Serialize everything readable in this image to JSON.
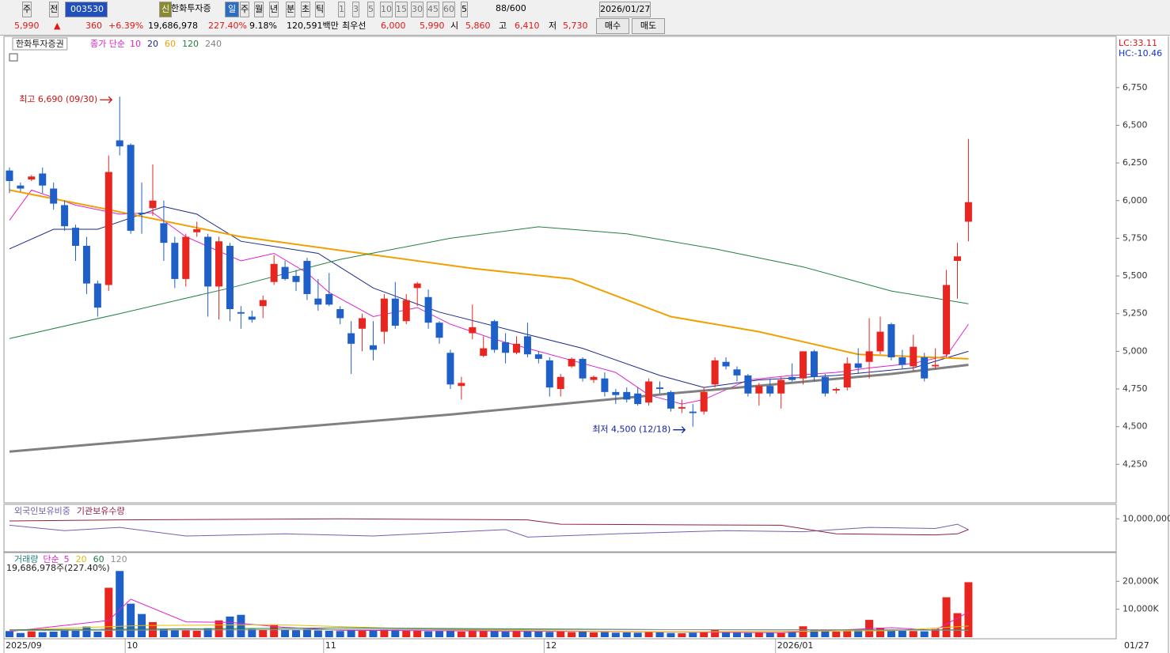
{
  "toolbar": {
    "items": [
      "주",
      "전",
      "003530",
      "신",
      "한화투자증",
      "일",
      "주",
      "월",
      "년",
      "분",
      "초",
      "틱",
      "1",
      "3",
      "5",
      "10",
      "15",
      "30",
      "45",
      "60",
      "5",
      "88/600",
      "2026/01/27"
    ]
  },
  "quote": {
    "items": [
      "5,990",
      "▲",
      "360",
      "+6.39%",
      "19,686,978",
      "227.40%",
      "9.18%",
      "120,591백만",
      "최우선",
      "6,000",
      "5,990",
      "시",
      "5,860",
      "고",
      "6,410",
      "저",
      "5,730"
    ],
    "buttons": [
      "매수",
      "매도"
    ]
  },
  "indicators": [
    "LC:33.11",
    "HC:-10.46"
  ],
  "x_axis": {
    "xticks": [
      {
        "value": 0,
        "label": "2025/09"
      },
      {
        "value": 11,
        "label": "10"
      },
      {
        "value": 29,
        "label": "11"
      },
      {
        "value": 49,
        "label": "12"
      },
      {
        "value": 70,
        "label": "2026/01"
      }
    ],
    "last_date": "01/27"
  },
  "chart_data": [
    {
      "type": "candlestick",
      "title": "한화투자증권",
      "legend_prefix": "종가 단순",
      "up_color": "#e8251f",
      "down_color": "#1f5fc8",
      "xlim": [
        -0.5,
        100.4
      ],
      "ylim": [
        4000,
        7090
      ],
      "yticks": [
        {
          "value": 4250,
          "label": "4,250"
        },
        {
          "value": 4500,
          "label": "4,500"
        },
        {
          "value": 4750,
          "label": "4,750"
        },
        {
          "value": 5000,
          "label": "5,000"
        },
        {
          "value": 5250,
          "label": "5,250"
        },
        {
          "value": 5500,
          "label": "5,500"
        },
        {
          "value": 5750,
          "label": "5,750"
        },
        {
          "value": 6000,
          "label": "6,000"
        },
        {
          "value": 6250,
          "label": "6,250"
        },
        {
          "value": 6500,
          "label": "6,500"
        },
        {
          "value": 6750,
          "label": "6,750"
        }
      ],
      "ohlc": [
        [
          6200,
          6220,
          6050,
          6130
        ],
        [
          6100,
          6120,
          6060,
          6080
        ],
        [
          6140,
          6170,
          6130,
          6160
        ],
        [
          6180,
          6220,
          6050,
          6100
        ],
        [
          6080,
          6120,
          5940,
          5980
        ],
        [
          5970,
          6000,
          5800,
          5830
        ],
        [
          5820,
          5840,
          5600,
          5700
        ],
        [
          5700,
          5760,
          5380,
          5450
        ],
        [
          5450,
          5470,
          5230,
          5290
        ],
        [
          5440,
          6300,
          5400,
          6190
        ],
        [
          6400,
          6690,
          6300,
          6360
        ],
        [
          6370,
          6380,
          5780,
          5800
        ],
        [
          5920,
          6120,
          5780,
          5910
        ],
        [
          5950,
          6240,
          5900,
          6000
        ],
        [
          5850,
          6000,
          5600,
          5720
        ],
        [
          5720,
          5760,
          5420,
          5480
        ],
        [
          5480,
          5780,
          5430,
          5760
        ],
        [
          5790,
          5860,
          5760,
          5810
        ],
        [
          5760,
          5780,
          5230,
          5430
        ],
        [
          5430,
          5760,
          5210,
          5730
        ],
        [
          5700,
          5720,
          5200,
          5280
        ],
        [
          5260,
          5300,
          5150,
          5250
        ],
        [
          5230,
          5270,
          5190,
          5210
        ],
        [
          5300,
          5370,
          5220,
          5340
        ],
        [
          5460,
          5640,
          5440,
          5580
        ],
        [
          5560,
          5600,
          5470,
          5480
        ],
        [
          5500,
          5540,
          5400,
          5460
        ],
        [
          5600,
          5620,
          5340,
          5380
        ],
        [
          5350,
          5480,
          5270,
          5310
        ],
        [
          5380,
          5520,
          5300,
          5310
        ],
        [
          5280,
          5300,
          5180,
          5220
        ],
        [
          5120,
          5200,
          4850,
          5050
        ],
        [
          5150,
          5250,
          5000,
          5220
        ],
        [
          5040,
          5200,
          4940,
          5010
        ],
        [
          5130,
          5380,
          5050,
          5350
        ],
        [
          5350,
          5460,
          5150,
          5170
        ],
        [
          5200,
          5380,
          5180,
          5340
        ],
        [
          5420,
          5460,
          5300,
          5450
        ],
        [
          5360,
          5410,
          5150,
          5190
        ],
        [
          5190,
          5200,
          5050,
          5090
        ],
        [
          4990,
          5010,
          4750,
          4780
        ],
        [
          4770,
          4830,
          4680,
          4790
        ],
        [
          5120,
          5310,
          5080,
          5160
        ],
        [
          4970,
          5100,
          4960,
          5020
        ],
        [
          5200,
          5210,
          4990,
          5010
        ],
        [
          5060,
          5120,
          4920,
          4990
        ],
        [
          4990,
          5100,
          4980,
          5050
        ],
        [
          5100,
          5190,
          4960,
          4980
        ],
        [
          4980,
          5000,
          4920,
          4950
        ],
        [
          4940,
          4960,
          4700,
          4760
        ],
        [
          4750,
          4850,
          4700,
          4830
        ],
        [
          4900,
          4960,
          4890,
          4950
        ],
        [
          4950,
          4960,
          4800,
          4820
        ],
        [
          4810,
          4840,
          4790,
          4830
        ],
        [
          4820,
          4860,
          4700,
          4730
        ],
        [
          4730,
          4750,
          4650,
          4710
        ],
        [
          4730,
          4760,
          4660,
          4680
        ],
        [
          4720,
          4760,
          4640,
          4650
        ],
        [
          4660,
          4820,
          4640,
          4800
        ],
        [
          4760,
          4800,
          4720,
          4750
        ],
        [
          4730,
          4740,
          4600,
          4620
        ],
        [
          4620,
          4680,
          4590,
          4630
        ],
        [
          4600,
          4650,
          4500,
          4590
        ],
        [
          4600,
          4760,
          4580,
          4730
        ],
        [
          4780,
          4960,
          4760,
          4940
        ],
        [
          4930,
          4960,
          4880,
          4900
        ],
        [
          4880,
          4900,
          4800,
          4840
        ],
        [
          4840,
          4850,
          4700,
          4720
        ],
        [
          4720,
          4790,
          4640,
          4770
        ],
        [
          4770,
          4820,
          4700,
          4720
        ],
        [
          4720,
          4830,
          4620,
          4810
        ],
        [
          4830,
          4920,
          4800,
          4810
        ],
        [
          4820,
          5000,
          4780,
          5000
        ],
        [
          5000,
          5010,
          4800,
          4830
        ],
        [
          4830,
          4850,
          4700,
          4720
        ],
        [
          4740,
          4760,
          4720,
          4750
        ],
        [
          4760,
          4960,
          4740,
          4920
        ],
        [
          4920,
          5020,
          4850,
          4890
        ],
        [
          4930,
          5220,
          4820,
          5000
        ],
        [
          5000,
          5230,
          4980,
          5130
        ],
        [
          5180,
          5190,
          4940,
          4960
        ],
        [
          4960,
          5010,
          4880,
          4910
        ],
        [
          4900,
          5110,
          4870,
          5030
        ],
        [
          4960,
          4990,
          4800,
          4820
        ],
        [
          4900,
          5020,
          4880,
          4910
        ],
        [
          4980,
          5540,
          4960,
          5440
        ],
        [
          5600,
          5720,
          5350,
          5630
        ],
        [
          5860,
          6410,
          5730,
          5990
        ]
      ],
      "series": [
        {
          "name": "10",
          "color": "#e020d0",
          "width": 1,
          "x": [
            0,
            2,
            6,
            10,
            13,
            16,
            21,
            24,
            27,
            29,
            33,
            37,
            40,
            44,
            47,
            51,
            55,
            58,
            61,
            63,
            67,
            71,
            75,
            78,
            82,
            85,
            87
          ],
          "values": [
            5870,
            6070,
            5970,
            5910,
            5920,
            5760,
            5600,
            5650,
            5520,
            5390,
            5230,
            5290,
            5180,
            5080,
            5020,
            4940,
            4860,
            4710,
            4650,
            4680,
            4810,
            4840,
            4860,
            4890,
            4920,
            4970,
            5180
          ]
        },
        {
          "name": "20",
          "color": "#1a2a8a",
          "width": 1,
          "x": [
            0,
            4,
            8,
            14,
            17,
            21,
            28,
            33,
            39,
            46,
            52,
            59,
            63,
            68,
            75,
            82,
            87
          ],
          "values": [
            5680,
            5810,
            5810,
            5960,
            5910,
            5730,
            5650,
            5420,
            5260,
            5130,
            5020,
            4840,
            4760,
            4810,
            4840,
            4890,
            5000
          ]
        },
        {
          "name": "60",
          "color": "#f0a000",
          "width": 2,
          "x": [
            0,
            9,
            21,
            32,
            42,
            51,
            60,
            68,
            77,
            87
          ],
          "values": [
            6070,
            5940,
            5760,
            5650,
            5550,
            5480,
            5230,
            5130,
            4980,
            4950
          ]
        },
        {
          "name": "120",
          "color": "#208040",
          "width": 1,
          "x": [
            0,
            10,
            20,
            30,
            40,
            48,
            56,
            64,
            72,
            80,
            87
          ],
          "values": [
            5085,
            5250,
            5420,
            5610,
            5750,
            5826,
            5780,
            5680,
            5560,
            5400,
            5316
          ]
        },
        {
          "name": "240",
          "color": "#808080",
          "width": 3,
          "x": [
            0,
            20,
            40,
            60,
            80,
            87
          ],
          "values": [
            4334,
            4460,
            4580,
            4720,
            4850,
            4910
          ]
        }
      ],
      "annotations": [
        {
          "text": "최고 6,690 (09/30)",
          "color": "#d01010",
          "x": 10,
          "y": 6690,
          "side": "left"
        },
        {
          "text": "최저 4,500 (12/18)",
          "color": "#1020a0",
          "x": 62,
          "y": 4500,
          "side": "left"
        }
      ]
    },
    {
      "type": "line",
      "xlim": [
        -0.5,
        100.4
      ],
      "ylim": [
        8500000,
        10600000
      ],
      "yticks": [
        {
          "value": 10000000,
          "label": "10,000,000"
        }
      ],
      "series": [
        {
          "name": "외국인보유비중",
          "color": "#7060b0",
          "x": [
            0,
            5,
            10,
            16,
            25,
            33,
            45,
            47,
            55,
            65,
            72,
            78,
            84,
            86,
            87
          ],
          "values": [
            9700000,
            9450000,
            9600000,
            9200000,
            9300000,
            9200000,
            9500000,
            9150000,
            9300000,
            9450000,
            9400000,
            9600000,
            9550000,
            9750000,
            9500000
          ]
        },
        {
          "name": "기관보유수량",
          "color": "#902040",
          "x": [
            0,
            10,
            30,
            47,
            50,
            70,
            75,
            84,
            86,
            87
          ],
          "values": [
            9900000,
            9950000,
            10000000,
            9950000,
            9750000,
            9700000,
            9300000,
            9250000,
            9300000,
            9500000
          ]
        }
      ]
    },
    {
      "type": "volume",
      "title": "거래량",
      "legend_prefix": "단순",
      "info": "19,686,978주(227.40%)",
      "xlim": [
        -0.5,
        100.4
      ],
      "ylim": [
        0,
        30000
      ],
      "yticks": [
        {
          "value": 10000,
          "label": "10,000K"
        },
        {
          "value": 20000,
          "label": "20,000K"
        }
      ],
      "values": [
        2200,
        1500,
        2100,
        1800,
        2000,
        2500,
        2300,
        3800,
        2000,
        17700,
        23700,
        12000,
        8300,
        5400,
        2900,
        2500,
        2400,
        2300,
        3200,
        6000,
        7400,
        8000,
        2900,
        2600,
        4300,
        2700,
        2500,
        2900,
        2400,
        2300,
        2200,
        2500,
        2300,
        2400,
        2800,
        2600,
        2400,
        2300,
        2100,
        2200,
        2300,
        2000,
        2700,
        2200,
        2300,
        2000,
        2100,
        2200,
        2000,
        1900,
        2100,
        1800,
        2000,
        1700,
        1800,
        1600,
        1700,
        1600,
        1900,
        1700,
        1500,
        1400,
        1600,
        1800,
        2700,
        1800,
        1600,
        1500,
        1700,
        1600,
        1500,
        1900,
        3900,
        2400,
        2200,
        2000,
        2300,
        2600,
        6200,
        3400,
        2700,
        2300,
        2200,
        2100,
        2900,
        14300,
        8600,
        19686.978
      ],
      "series": [
        {
          "name": "5",
          "color": "#e020d0",
          "x": [
            0,
            9,
            11,
            16,
            20,
            25,
            30,
            50,
            70,
            80,
            84,
            87
          ],
          "values": [
            2000,
            6000,
            13600,
            5500,
            5300,
            3500,
            2500,
            2100,
            1600,
            3400,
            2500,
            9000
          ]
        },
        {
          "name": "20",
          "color": "#e0c000",
          "x": [
            0,
            12,
            24,
            40,
            60,
            80,
            87
          ],
          "values": [
            2500,
            4200,
            4500,
            2600,
            1900,
            2300,
            4000
          ]
        },
        {
          "name": "60",
          "color": "#208040",
          "x": [
            0,
            30,
            60,
            87
          ],
          "values": [
            2600,
            3300,
            2700,
            2600
          ]
        },
        {
          "name": "120",
          "color": "#909090",
          "x": [
            0,
            40,
            87
          ],
          "values": [
            2400,
            2800,
            2500
          ]
        }
      ]
    }
  ]
}
